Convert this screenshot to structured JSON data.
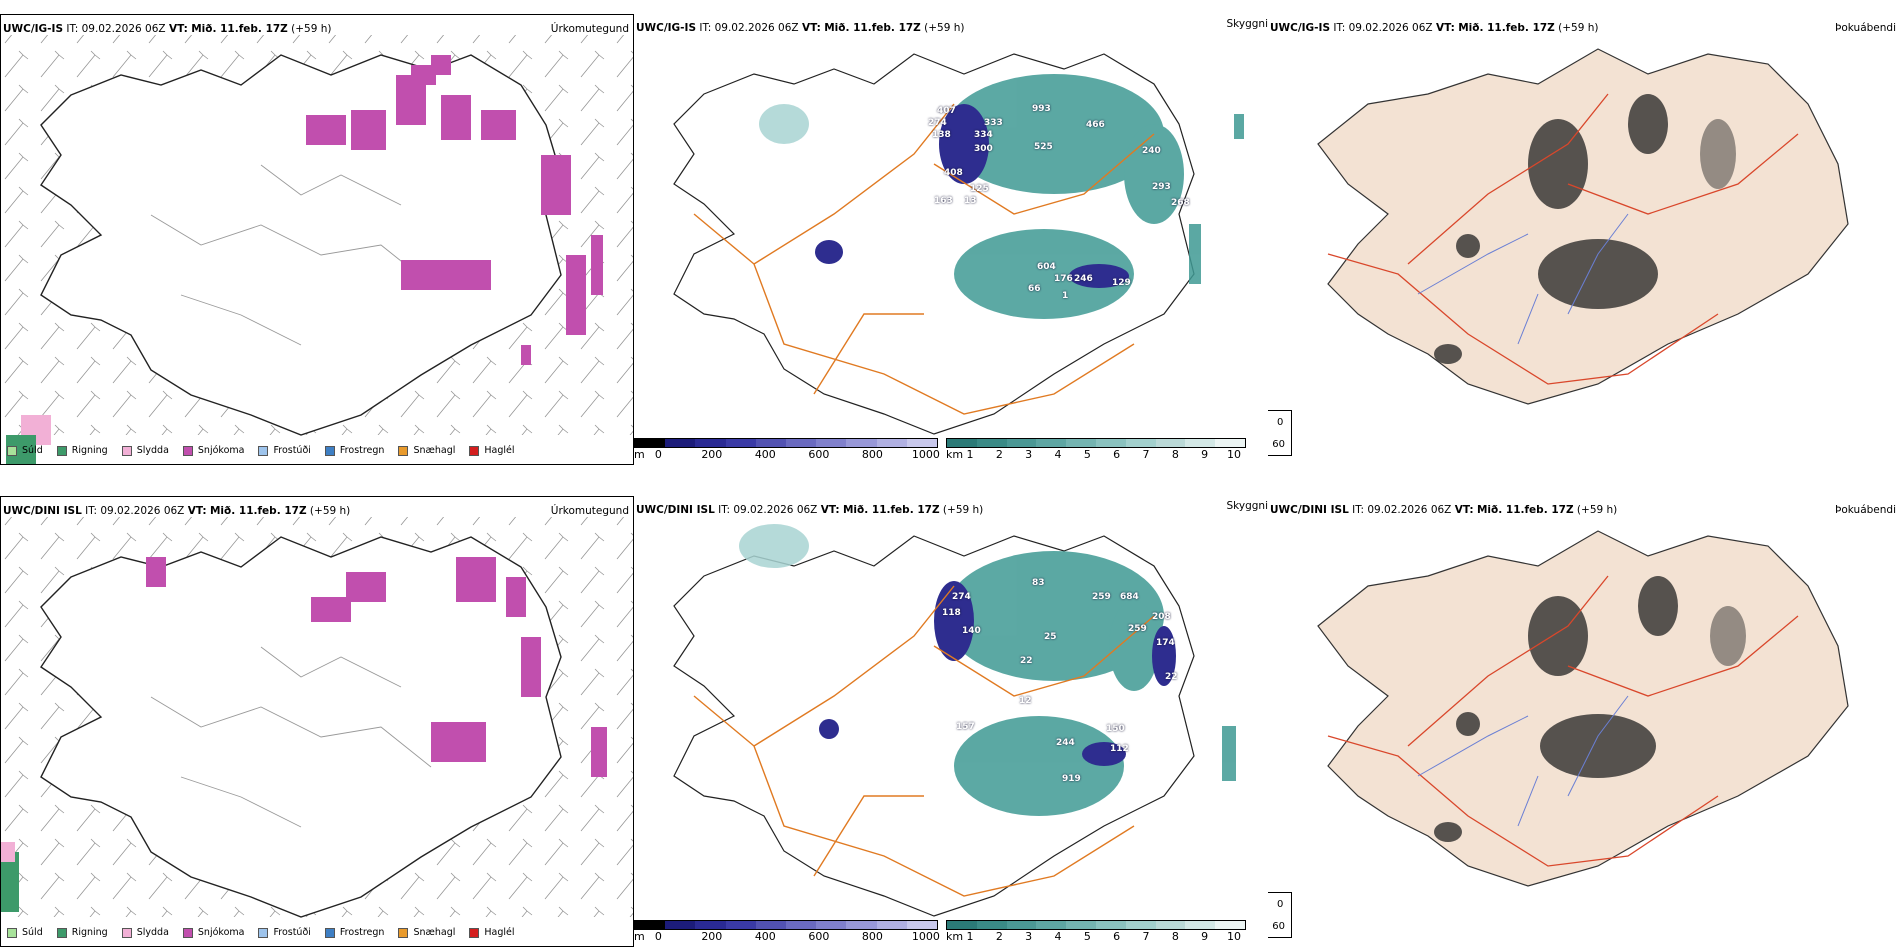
{
  "colors": {
    "snow": "#c14fae",
    "teal": "#3f9a94",
    "lightteal": "#a8d4d2",
    "purple": "#2e2d8f",
    "roads": "#e07a22",
    "land": "#f3e2d3",
    "rivers": "#6a7fd4",
    "fogroads": "#d9472b"
  },
  "top": {
    "precip": {
      "model": "UWC/IG-IS",
      "it": "IT: 09.02.2026 06Z",
      "vt_label": "VT:",
      "vt": "Mið. 11.feb. 17Z",
      "lead": "(+59 h)",
      "right": "Úrkomutegund"
    },
    "cloud": {
      "model": "UWC/IG-IS",
      "it": "IT: 09.02.2026 06Z",
      "vt_label": "VT:",
      "vt": "Mið. 11.feb. 17Z",
      "lead": "(+59 h)",
      "right": "Skyggni",
      "labels": [
        "407",
        "333",
        "993",
        "466",
        "274",
        "138",
        "334",
        "300",
        "525",
        "240",
        "408",
        "125",
        "293",
        "268",
        "163",
        "604",
        "129",
        "176",
        "246",
        "13",
        "66",
        "1"
      ]
    },
    "fog": {
      "model": "UWC/IG-IS",
      "it": "IT: 09.02.2026 06Z",
      "vt_label": "VT:",
      "vt": "Mið. 11.feb. 17Z",
      "lead": "(+59 h)",
      "right": "Þokuábendi"
    }
  },
  "bottom": {
    "precip": {
      "model": "UWC/DINI ISL",
      "it": "IT: 09.02.2026 06Z",
      "vt_label": "VT:",
      "vt": "Mið. 11.feb. 17Z",
      "lead": "(+59 h)",
      "right": "Úrkomutegund"
    },
    "cloud": {
      "model": "UWC/DINI ISL",
      "it": "IT: 09.02.2026 06Z",
      "vt_label": "VT:",
      "vt": "Mið. 11.feb. 17Z",
      "lead": "(+59 h)",
      "right": "Skyggni",
      "labels": [
        "83",
        "259",
        "684",
        "274",
        "118",
        "140",
        "208",
        "259",
        "174",
        "22",
        "12",
        "22",
        "244",
        "112",
        "150",
        "919",
        "157",
        "25"
      ]
    },
    "fog": {
      "model": "UWC/DINI ISL",
      "it": "IT: 09.02.2026 06Z",
      "vt_label": "VT:",
      "vt": "Mið. 11.feb. 17Z",
      "lead": "(+59 h)",
      "right": "Þokuábendi"
    }
  },
  "precip_legend": [
    {
      "label": "Súld",
      "color": "#a7e29a"
    },
    {
      "label": "Rigning",
      "color": "#3d9a6a"
    },
    {
      "label": "Slydda",
      "color": "#f2b0d6"
    },
    {
      "label": "Snjókoma",
      "color": "#c14fae"
    },
    {
      "label": "Frostúði",
      "color": "#9ec4ec"
    },
    {
      "label": "Frostregn",
      "color": "#3e7fc4"
    },
    {
      "label": "Snæhagl",
      "color": "#e89a2c"
    },
    {
      "label": "Haglél",
      "color": "#d41e1e"
    }
  ],
  "cloud_base_bar": {
    "unit": "m",
    "ticks": [
      "0",
      "200",
      "400",
      "600",
      "800",
      "1000"
    ],
    "colors": [
      "#000000",
      "#1c1c7a",
      "#2a2a94",
      "#3a3aa6",
      "#5252b2",
      "#6a6ac0",
      "#8080cc",
      "#9898d8",
      "#b0b0e2",
      "#c8c8ec"
    ]
  },
  "visibility_bar": {
    "unit": "km",
    "ticks": [
      "1",
      "2",
      "3",
      "4",
      "5",
      "6",
      "7",
      "8",
      "9",
      "10"
    ],
    "colors": [
      "#2b7a77",
      "#3a8a86",
      "#4b9895",
      "#5ea6a3",
      "#74b4b1",
      "#8ac2bf",
      "#a2d0cd",
      "#bad9d7",
      "#d3e8e6",
      "#ecf5f4"
    ]
  },
  "fog_legend": [
    {
      "value": "0",
      "color": "#000000"
    },
    {
      "value": "60",
      "color": "#ffffff"
    }
  ]
}
